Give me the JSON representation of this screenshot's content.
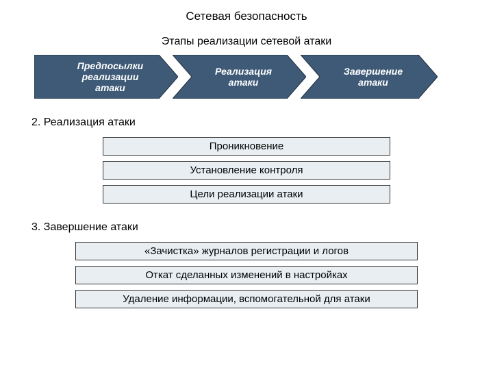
{
  "title": "Сетевая безопасность",
  "subtitle": "Этапы реализации сетевой атаки",
  "arrows": {
    "items": [
      {
        "label": "Предпосылки\nреализации\nатаки"
      },
      {
        "label": "Реализация\nатаки"
      },
      {
        "label": "Завершение\nатаки"
      }
    ],
    "fill": "#3e5a77",
    "stroke": "#1f2d3a",
    "text_color": "#ffffff"
  },
  "section2": {
    "heading": "2. Реализация атаки",
    "items": [
      "Проникновение",
      "Установление контроля",
      "Цели реализации атаки"
    ]
  },
  "section3": {
    "heading": "3. Завершение атаки",
    "items": [
      "«Зачистка» журналов регистрации и логов",
      "Откат сделанных изменений в настройках",
      "Удаление информации, вспомогательной для атаки"
    ]
  },
  "box_style": {
    "bg": "#e8eef2",
    "border": "#333333",
    "fontsize": 15
  }
}
